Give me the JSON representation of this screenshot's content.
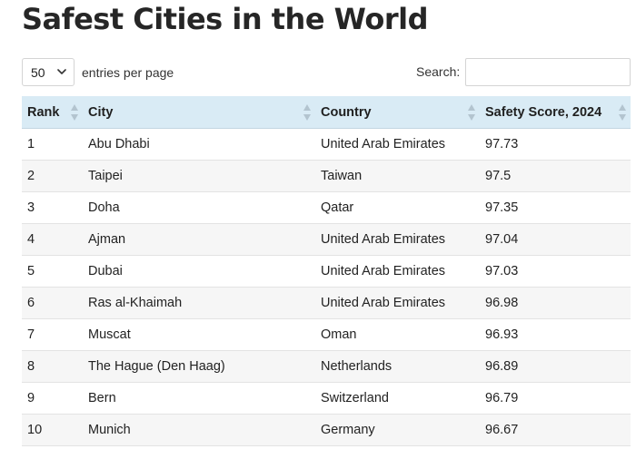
{
  "page": {
    "title": "Safest Cities in the World"
  },
  "controls": {
    "length_value": "50",
    "length_suffix": "entries per page",
    "search_label": "Search:",
    "search_value": ""
  },
  "table": {
    "headers": {
      "rank": "Rank",
      "city": "City",
      "country": "Country",
      "score": "Safety Score, 2024"
    },
    "rows": [
      {
        "rank": "1",
        "city": "Abu Dhabi",
        "country": "United Arab Emirates",
        "score": "97.73"
      },
      {
        "rank": "2",
        "city": "Taipei",
        "country": "Taiwan",
        "score": "97.5"
      },
      {
        "rank": "3",
        "city": "Doha",
        "country": "Qatar",
        "score": "97.35"
      },
      {
        "rank": "4",
        "city": "Ajman",
        "country": "United Arab Emirates",
        "score": "97.04"
      },
      {
        "rank": "5",
        "city": "Dubai",
        "country": "United Arab Emirates",
        "score": "97.03"
      },
      {
        "rank": "6",
        "city": "Ras al-Khaimah",
        "country": "United Arab Emirates",
        "score": "96.98"
      },
      {
        "rank": "7",
        "city": "Muscat",
        "country": "Oman",
        "score": "96.93"
      },
      {
        "rank": "8",
        "city": "The Hague (Den Haag)",
        "country": "Netherlands",
        "score": "96.89"
      },
      {
        "rank": "9",
        "city": "Bern",
        "country": "Switzerland",
        "score": "96.79"
      },
      {
        "rank": "10",
        "city": "Munich",
        "country": "Germany",
        "score": "96.67"
      }
    ]
  },
  "icons": {
    "length_dropdown": "chevron-down-icon",
    "column_sort": "sort-arrows-icon"
  },
  "colors": {
    "header_background": "#d9ebf5",
    "stripe_background": "#f6f6f6",
    "sort_icon": "#b3c4cf"
  }
}
